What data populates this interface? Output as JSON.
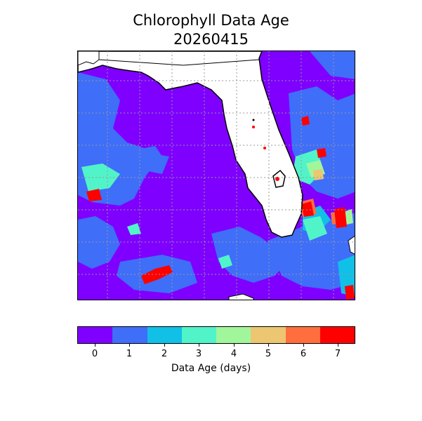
{
  "title": {
    "line1": "Chlorophyll Data Age",
    "line2": "20260415"
  },
  "colorbar": {
    "label": "Data Age (days)",
    "ticks": [
      "0",
      "1",
      "2",
      "3",
      "4",
      "5",
      "6",
      "7"
    ],
    "colors": [
      "#7f00ff",
      "#3f6ef9",
      "#10c0e6",
      "#51f4c8",
      "#a1f69c",
      "#ecc671",
      "#ff6e3c",
      "#ff0000"
    ]
  },
  "map": {
    "land_color": "#ffffff",
    "coast_color": "#000000",
    "grid": true,
    "grid_style": "dotted"
  }
}
